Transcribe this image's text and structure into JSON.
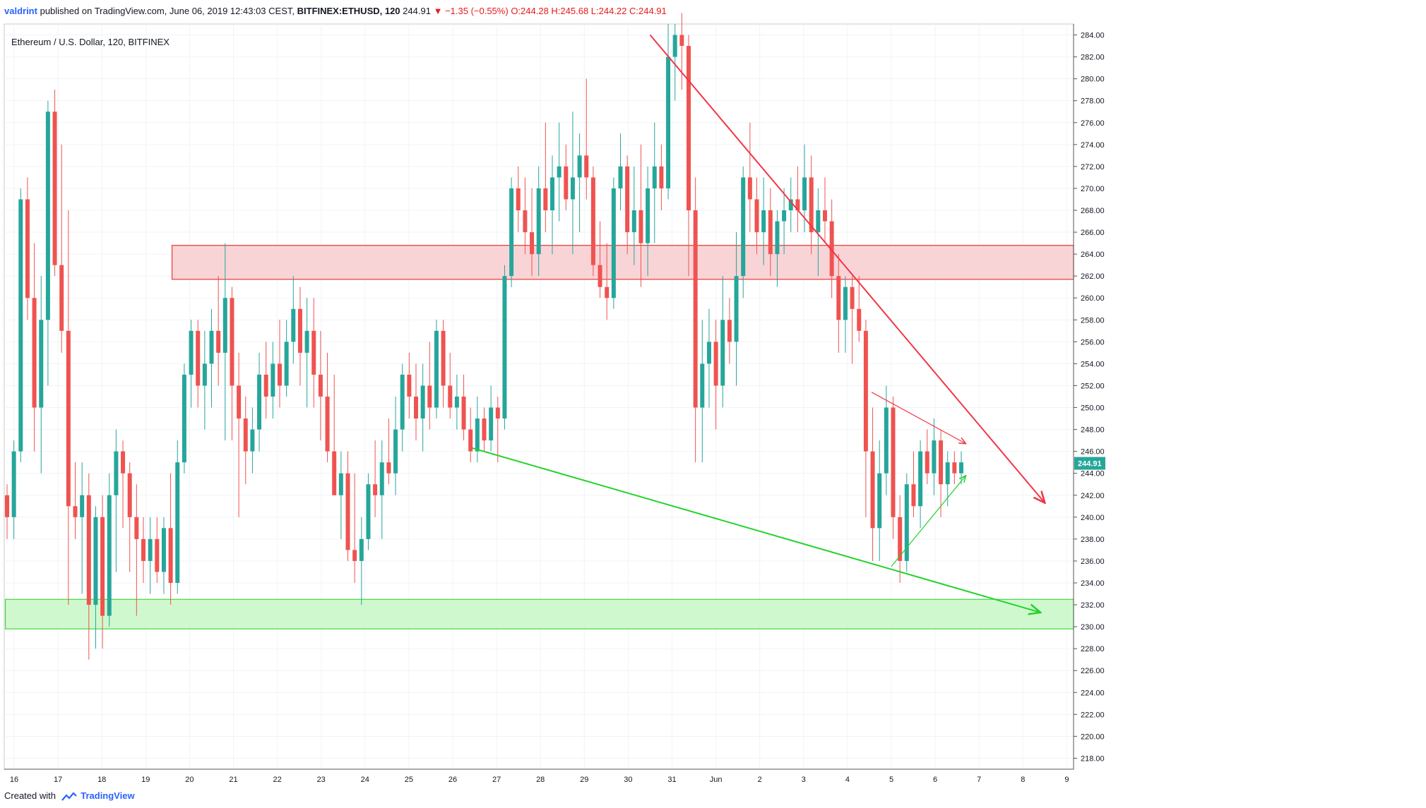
{
  "header": {
    "user": "valdrint",
    "published_text": "published on TradingView.com, June 06, 2019 12:43:03 CEST",
    "symbol": "BITFINEX:ETHUSD, 120",
    "last": "244.91",
    "arrow": "▼",
    "change": "−1.35 (−0.55%)",
    "ohlc": "O:244.28 H:245.68 L:244.22 C:244.91"
  },
  "legend_title": "Ethereum / U.S. Dollar, 120, BITFINEX",
  "footer": {
    "created_with": "Created with",
    "brand": "TradingView"
  },
  "colors": {
    "up": "#26a69a",
    "down": "#ef5350",
    "resistance_zone": "#f8cdd0",
    "support_zone": "#c8f7c5",
    "trend_red": "#f23645",
    "trend_green": "#22d32b",
    "price_label": "#26a69a"
  },
  "chart_data": {
    "type": "candlestick",
    "title": "Ethereum / U.S. Dollar, 120, BITFINEX",
    "ylim": [
      217,
      285
    ],
    "y_ticks": [
      "218.00",
      "220.00",
      "222.00",
      "224.00",
      "226.00",
      "228.00",
      "230.00",
      "232.00",
      "234.00",
      "236.00",
      "238.00",
      "240.00",
      "242.00",
      "244.00",
      "246.00",
      "248.00",
      "250.00",
      "252.00",
      "254.00",
      "256.00",
      "258.00",
      "260.00",
      "262.00",
      "264.00",
      "266.00",
      "268.00",
      "270.00",
      "272.00",
      "274.00",
      "276.00",
      "278.00",
      "280.00",
      "282.00",
      "284.00"
    ],
    "x_ticks": [
      {
        "label": "16",
        "day": 0
      },
      {
        "label": "17",
        "day": 1
      },
      {
        "label": "18",
        "day": 2
      },
      {
        "label": "19",
        "day": 3
      },
      {
        "label": "20",
        "day": 4
      },
      {
        "label": "21",
        "day": 5
      },
      {
        "label": "22",
        "day": 6
      },
      {
        "label": "23",
        "day": 7
      },
      {
        "label": "24",
        "day": 8
      },
      {
        "label": "25",
        "day": 9
      },
      {
        "label": "26",
        "day": 10
      },
      {
        "label": "27",
        "day": 11
      },
      {
        "label": "28",
        "day": 12
      },
      {
        "label": "29",
        "day": 13
      },
      {
        "label": "30",
        "day": 14
      },
      {
        "label": "31",
        "day": 15
      },
      {
        "label": "Jun",
        "day": 16
      },
      {
        "label": "2",
        "day": 17
      },
      {
        "label": "3",
        "day": 18
      },
      {
        "label": "4",
        "day": 19
      },
      {
        "label": "5",
        "day": 20
      },
      {
        "label": "6",
        "day": 21
      },
      {
        "label": "7",
        "day": 22
      },
      {
        "label": "8",
        "day": 23
      },
      {
        "label": "9",
        "day": 24
      }
    ],
    "last_price": "244.91",
    "zones": [
      {
        "name": "resistance",
        "from": 261.7,
        "to": 264.8,
        "start_day": 3.6
      },
      {
        "name": "support",
        "from": 229.8,
        "to": 232.5,
        "start_day": -0.2
      }
    ],
    "trendlines": [
      {
        "color": "red",
        "from": [
          14.5,
          284.0
        ],
        "to": [
          23.5,
          241.3
        ],
        "arrow": true
      },
      {
        "color": "green",
        "from": [
          10.45,
          246.3
        ],
        "to": [
          23.4,
          231.3
        ],
        "arrow": true
      },
      {
        "color": "red",
        "from": [
          19.55,
          251.4
        ],
        "to": [
          21.7,
          246.7
        ],
        "arrow": true
      },
      {
        "color": "green",
        "from": [
          20.0,
          235.5
        ],
        "to": [
          21.7,
          243.8
        ],
        "arrow": true
      }
    ],
    "candles_ohlc": [
      [
        242,
        243,
        238,
        240
      ],
      [
        240,
        247,
        238,
        246
      ],
      [
        246,
        270,
        245,
        269
      ],
      [
        269,
        271,
        258,
        260
      ],
      [
        260,
        265,
        246,
        250
      ],
      [
        250,
        262,
        244,
        258
      ],
      [
        258,
        278,
        252,
        277
      ],
      [
        277,
        279,
        262,
        263
      ],
      [
        263,
        274,
        255,
        257
      ],
      [
        257,
        268,
        232,
        241
      ],
      [
        241,
        245,
        238,
        240
      ],
      [
        240,
        245,
        233,
        242
      ],
      [
        242,
        244,
        227,
        232
      ],
      [
        232,
        241,
        228,
        240
      ],
      [
        240,
        242,
        228,
        231
      ],
      [
        231,
        244,
        230,
        242
      ],
      [
        242,
        248,
        235,
        246
      ],
      [
        246,
        247,
        239,
        244
      ],
      [
        244,
        245,
        235,
        240
      ],
      [
        240,
        243,
        231,
        238
      ],
      [
        238,
        240,
        234,
        236
      ],
      [
        236,
        240,
        233,
        238
      ],
      [
        238,
        240,
        234,
        235
      ],
      [
        235,
        240,
        233,
        239
      ],
      [
        239,
        244,
        232,
        234
      ],
      [
        234,
        247,
        233,
        245
      ],
      [
        245,
        254,
        244,
        253
      ],
      [
        253,
        258,
        250,
        257
      ],
      [
        257,
        258,
        250,
        252
      ],
      [
        252,
        257,
        248,
        254
      ],
      [
        254,
        259,
        250,
        257
      ],
      [
        257,
        262,
        252,
        255
      ],
      [
        255,
        265,
        247,
        260
      ],
      [
        260,
        261,
        247,
        252
      ],
      [
        252,
        255,
        240,
        249
      ],
      [
        249,
        251,
        243,
        246
      ],
      [
        246,
        250,
        244,
        248
      ],
      [
        248,
        255,
        246,
        253
      ],
      [
        253,
        256,
        249,
        251
      ],
      [
        251,
        256,
        249,
        254
      ],
      [
        254,
        258,
        250,
        252
      ],
      [
        252,
        258,
        251,
        256
      ],
      [
        256,
        262,
        254,
        259
      ],
      [
        259,
        261,
        252,
        255
      ],
      [
        255,
        260,
        250,
        257
      ],
      [
        257,
        260,
        250,
        253
      ],
      [
        253,
        257,
        247,
        251
      ],
      [
        251,
        255,
        245,
        246
      ],
      [
        246,
        253,
        242,
        242
      ],
      [
        242,
        246,
        238,
        244
      ],
      [
        244,
        246,
        236,
        237
      ],
      [
        237,
        244,
        234,
        236
      ],
      [
        236,
        240,
        232,
        238
      ],
      [
        238,
        244,
        237,
        243
      ],
      [
        243,
        247,
        240,
        242
      ],
      [
        242,
        247,
        238,
        245
      ],
      [
        245,
        249,
        243,
        244
      ],
      [
        244,
        251,
        242,
        248
      ],
      [
        248,
        254,
        246,
        253
      ],
      [
        253,
        255,
        249,
        251
      ],
      [
        251,
        254,
        247,
        249
      ],
      [
        249,
        254,
        246,
        252
      ],
      [
        252,
        256,
        248,
        250
      ],
      [
        250,
        258,
        249,
        257
      ],
      [
        257,
        258,
        250,
        252
      ],
      [
        252,
        255,
        249,
        250
      ],
      [
        250,
        253,
        248,
        251
      ],
      [
        251,
        253,
        247,
        248
      ],
      [
        248,
        250,
        245,
        246
      ],
      [
        246,
        251,
        245,
        249
      ],
      [
        249,
        250,
        246,
        247
      ],
      [
        247,
        252,
        246,
        250
      ],
      [
        250,
        251,
        245,
        249
      ],
      [
        249,
        263,
        248,
        262
      ],
      [
        262,
        271,
        261,
        270
      ],
      [
        270,
        272,
        266,
        268
      ],
      [
        268,
        271,
        264,
        266
      ],
      [
        266,
        270,
        262,
        264
      ],
      [
        264,
        272,
        262,
        270
      ],
      [
        270,
        276,
        266,
        268
      ],
      [
        268,
        273,
        264,
        271
      ],
      [
        271,
        276,
        267,
        272
      ],
      [
        272,
        274,
        268,
        269
      ],
      [
        269,
        277,
        264,
        271
      ],
      [
        271,
        275,
        266,
        273
      ],
      [
        273,
        280,
        269,
        271
      ],
      [
        271,
        272,
        262,
        263
      ],
      [
        263,
        267,
        260,
        261
      ],
      [
        261,
        265,
        258,
        260
      ],
      [
        260,
        271,
        259,
        270
      ],
      [
        270,
        275,
        268,
        272
      ],
      [
        272,
        273,
        264,
        266
      ],
      [
        266,
        272,
        263,
        268
      ],
      [
        268,
        274,
        261,
        265
      ],
      [
        265,
        272,
        262,
        270
      ],
      [
        270,
        276,
        265,
        272
      ],
      [
        272,
        274,
        268,
        270
      ],
      [
        270,
        285,
        269,
        282
      ],
      [
        282,
        285,
        278,
        284
      ],
      [
        284,
        286,
        279,
        283
      ],
      [
        283,
        284,
        262,
        268
      ],
      [
        268,
        271,
        245,
        250
      ],
      [
        250,
        258,
        245,
        254
      ],
      [
        254,
        259,
        250,
        256
      ],
      [
        256,
        258,
        248,
        252
      ],
      [
        252,
        262,
        250,
        258
      ],
      [
        258,
        260,
        254,
        256
      ],
      [
        256,
        266,
        252,
        262
      ],
      [
        262,
        272,
        260,
        271
      ],
      [
        271,
        276,
        266,
        269
      ],
      [
        269,
        271,
        264,
        266
      ],
      [
        266,
        271,
        263,
        268
      ],
      [
        268,
        270,
        262,
        264
      ],
      [
        264,
        268,
        261,
        267
      ],
      [
        267,
        270,
        264,
        268
      ],
      [
        268,
        271,
        266,
        269
      ],
      [
        269,
        272,
        266,
        268
      ],
      [
        268,
        274,
        266,
        271
      ],
      [
        271,
        273,
        264,
        266
      ],
      [
        266,
        270,
        262,
        268
      ],
      [
        268,
        271,
        265,
        267
      ],
      [
        267,
        269,
        260,
        262
      ],
      [
        262,
        264,
        255,
        258
      ],
      [
        258,
        262,
        255,
        261
      ],
      [
        261,
        262,
        254,
        259
      ],
      [
        259,
        262,
        256,
        257
      ],
      [
        257,
        258,
        240,
        246
      ],
      [
        246,
        250,
        236,
        239
      ],
      [
        239,
        247,
        236,
        244
      ],
      [
        244,
        252,
        242,
        250
      ],
      [
        250,
        251,
        238,
        240
      ],
      [
        240,
        242,
        234,
        236
      ],
      [
        236,
        244,
        235,
        243
      ],
      [
        243,
        246,
        240,
        241
      ],
      [
        241,
        247,
        239,
        246
      ],
      [
        246,
        248,
        243,
        244
      ],
      [
        244,
        249,
        242,
        247
      ],
      [
        247,
        248,
        240,
        243
      ],
      [
        243,
        246,
        241,
        245
      ],
      [
        245,
        246,
        243,
        244
      ],
      [
        244,
        246,
        243,
        245
      ]
    ]
  }
}
